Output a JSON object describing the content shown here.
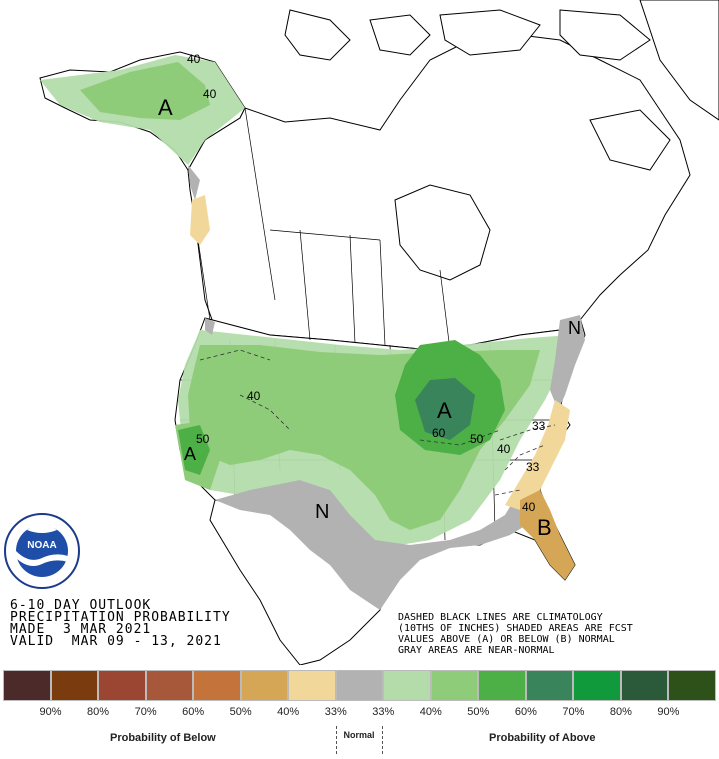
{
  "outlook": {
    "line1": "6-10 DAY OUTLOOK",
    "line2": "PRECIPITATION PROBABILITY",
    "line3": "MADE  3 MAR 2021",
    "line4": "VALID  MAR 09 - 13, 2021"
  },
  "notes": {
    "line1": "DASHED BLACK LINES ARE CLIMATOLOGY",
    "line2": "(10THS OF INCHES) SHADED AREAS ARE FCST",
    "line3": "VALUES ABOVE (A) OR BELOW (B) NORMAL",
    "line4": "GRAY AREAS ARE NEAR-NORMAL"
  },
  "logo": {
    "icon": "noaa-logo-icon",
    "text": "NOAA"
  },
  "map_labels": [
    {
      "id": "alaska-a",
      "text": "A"
    },
    {
      "id": "alaska-40a",
      "text": "40"
    },
    {
      "id": "alaska-40b",
      "text": "40"
    },
    {
      "id": "ca-50",
      "text": "50"
    },
    {
      "id": "ca-a",
      "text": "A"
    },
    {
      "id": "west-40",
      "text": "40"
    },
    {
      "id": "sw-n",
      "text": "N"
    },
    {
      "id": "mw-a",
      "text": "A"
    },
    {
      "id": "mw-60",
      "text": "60"
    },
    {
      "id": "mw-50",
      "text": "50"
    },
    {
      "id": "ov-40",
      "text": "40"
    },
    {
      "id": "ec-33a",
      "text": "33"
    },
    {
      "id": "ec-33b",
      "text": "33"
    },
    {
      "id": "se-40",
      "text": "40"
    },
    {
      "id": "se-b",
      "text": "B"
    },
    {
      "id": "ne-n",
      "text": "N"
    }
  ],
  "legend": {
    "swatch_colors": [
      "#4d2a2a",
      "#7a3c0e",
      "#9a4633",
      "#a8583a",
      "#c4733a",
      "#d6a657",
      "#f1d89a",
      "#b2b2b2",
      "#b3dcaa",
      "#8fcc7a",
      "#4cb046",
      "#3a845b",
      "#119a3c",
      "#2a5a3a",
      "#2e5019"
    ],
    "percent_labels": [
      "90%",
      "80%",
      "70%",
      "60%",
      "50%",
      "40%",
      "33%",
      "33%",
      "40%",
      "50%",
      "60%",
      "70%",
      "80%",
      "90%"
    ],
    "below_caption": "Probability of Below",
    "normal_caption": "Normal",
    "above_caption": "Probability of Above"
  },
  "palette": {
    "above33": "#b3dcaa",
    "above40": "#8fcc7a",
    "above50": "#4cb046",
    "above60": "#3a845b",
    "near_normal": "#b2b2b2",
    "below33": "#f1d89a",
    "below40": "#d6a657"
  }
}
